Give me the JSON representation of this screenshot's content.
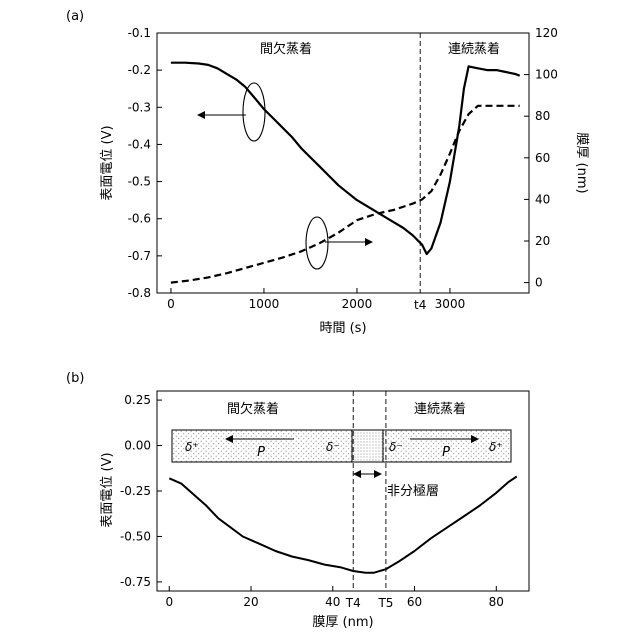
{
  "chart_data": [
    {
      "id": "panel-a",
      "panel_label": "(a)",
      "type": "line",
      "xlabel": "時間 (s)",
      "ylabel_left": "表面電位 (V)",
      "ylabel_right": "膜厚 (nm)",
      "xlim": [
        -150,
        3850
      ],
      "ylim_left": [
        -0.8,
        -0.1
      ],
      "ylim_right": [
        -5,
        120
      ],
      "xticks": [
        0,
        1000,
        2000,
        3000
      ],
      "yticks_left": [
        -0.8,
        -0.7,
        -0.6,
        -0.5,
        -0.4,
        -0.3,
        -0.2,
        -0.1
      ],
      "yticks_right": [
        0,
        20,
        40,
        60,
        80,
        100,
        120
      ],
      "grid": false,
      "region_labels": [
        "間欠蒸着",
        "連続蒸着"
      ],
      "vline": {
        "x": 2680,
        "label": "t4"
      },
      "series": [
        {
          "style": "solid",
          "axis": "left",
          "x": [
            0,
            150,
            300,
            400,
            500,
            600,
            700,
            800,
            900,
            1000,
            1100,
            1200,
            1300,
            1400,
            1500,
            1600,
            1700,
            1800,
            1900,
            2000,
            2100,
            2200,
            2300,
            2400,
            2500,
            2600,
            2700,
            2750,
            2800,
            2900,
            3000,
            3100,
            3150,
            3200,
            3300,
            3400,
            3500,
            3600,
            3700,
            3750
          ],
          "y": [
            -0.18,
            -0.18,
            -0.182,
            -0.186,
            -0.195,
            -0.21,
            -0.225,
            -0.245,
            -0.275,
            -0.305,
            -0.33,
            -0.355,
            -0.38,
            -0.41,
            -0.435,
            -0.46,
            -0.485,
            -0.51,
            -0.53,
            -0.55,
            -0.565,
            -0.58,
            -0.595,
            -0.61,
            -0.625,
            -0.645,
            -0.67,
            -0.695,
            -0.68,
            -0.61,
            -0.5,
            -0.35,
            -0.25,
            -0.19,
            -0.195,
            -0.2,
            -0.2,
            -0.205,
            -0.21,
            -0.215
          ]
        },
        {
          "style": "dashed",
          "axis": "right",
          "x": [
            0,
            200,
            400,
            600,
            800,
            1000,
            1200,
            1400,
            1600,
            1800,
            2000,
            2200,
            2400,
            2600,
            2700,
            2800,
            2900,
            3000,
            3100,
            3200,
            3300,
            3400,
            3500,
            3600,
            3700,
            3750
          ],
          "y": [
            0,
            1,
            2.5,
            4.5,
            7,
            9.5,
            12,
            15,
            19,
            24,
            30,
            33,
            35,
            38,
            40,
            44,
            52,
            62,
            73,
            81,
            85,
            85,
            85,
            85,
            85,
            85
          ]
        }
      ]
    },
    {
      "id": "panel-b",
      "panel_label": "(b)",
      "type": "line",
      "xlabel": "膜厚 (nm)",
      "ylabel": "表面電位 (V)",
      "xlim": [
        -3,
        88
      ],
      "ylim": [
        -0.8,
        0.3
      ],
      "xticks": [
        0,
        20,
        40,
        60,
        80
      ],
      "yticks": [
        -0.75,
        -0.5,
        -0.25,
        0.0,
        0.25
      ],
      "ytick_labels": [
        "-0.75",
        "-0.50",
        "-0.25",
        "0.00",
        "0.25"
      ],
      "grid": false,
      "region_labels": [
        "間欠蒸着",
        "連続蒸着"
      ],
      "vlines": [
        {
          "x": 45,
          "label": "T4"
        },
        {
          "x": 53,
          "label": "T5"
        }
      ],
      "annotation": "非分極層",
      "layer_labels": [
        "δ⁺",
        "P",
        "δ⁻",
        "δ⁻",
        "P",
        "δ⁺"
      ],
      "series": [
        {
          "style": "solid",
          "x": [
            0,
            3,
            6,
            9,
            12,
            15,
            18,
            22,
            26,
            30,
            34,
            38,
            42,
            45,
            48,
            50,
            53,
            56,
            60,
            64,
            68,
            72,
            76,
            80,
            83,
            85
          ],
          "y": [
            -0.18,
            -0.21,
            -0.27,
            -0.33,
            -0.4,
            -0.45,
            -0.5,
            -0.54,
            -0.58,
            -0.61,
            -0.63,
            -0.655,
            -0.67,
            -0.69,
            -0.7,
            -0.7,
            -0.68,
            -0.64,
            -0.58,
            -0.51,
            -0.45,
            -0.39,
            -0.33,
            -0.26,
            -0.2,
            -0.17
          ]
        }
      ]
    }
  ]
}
